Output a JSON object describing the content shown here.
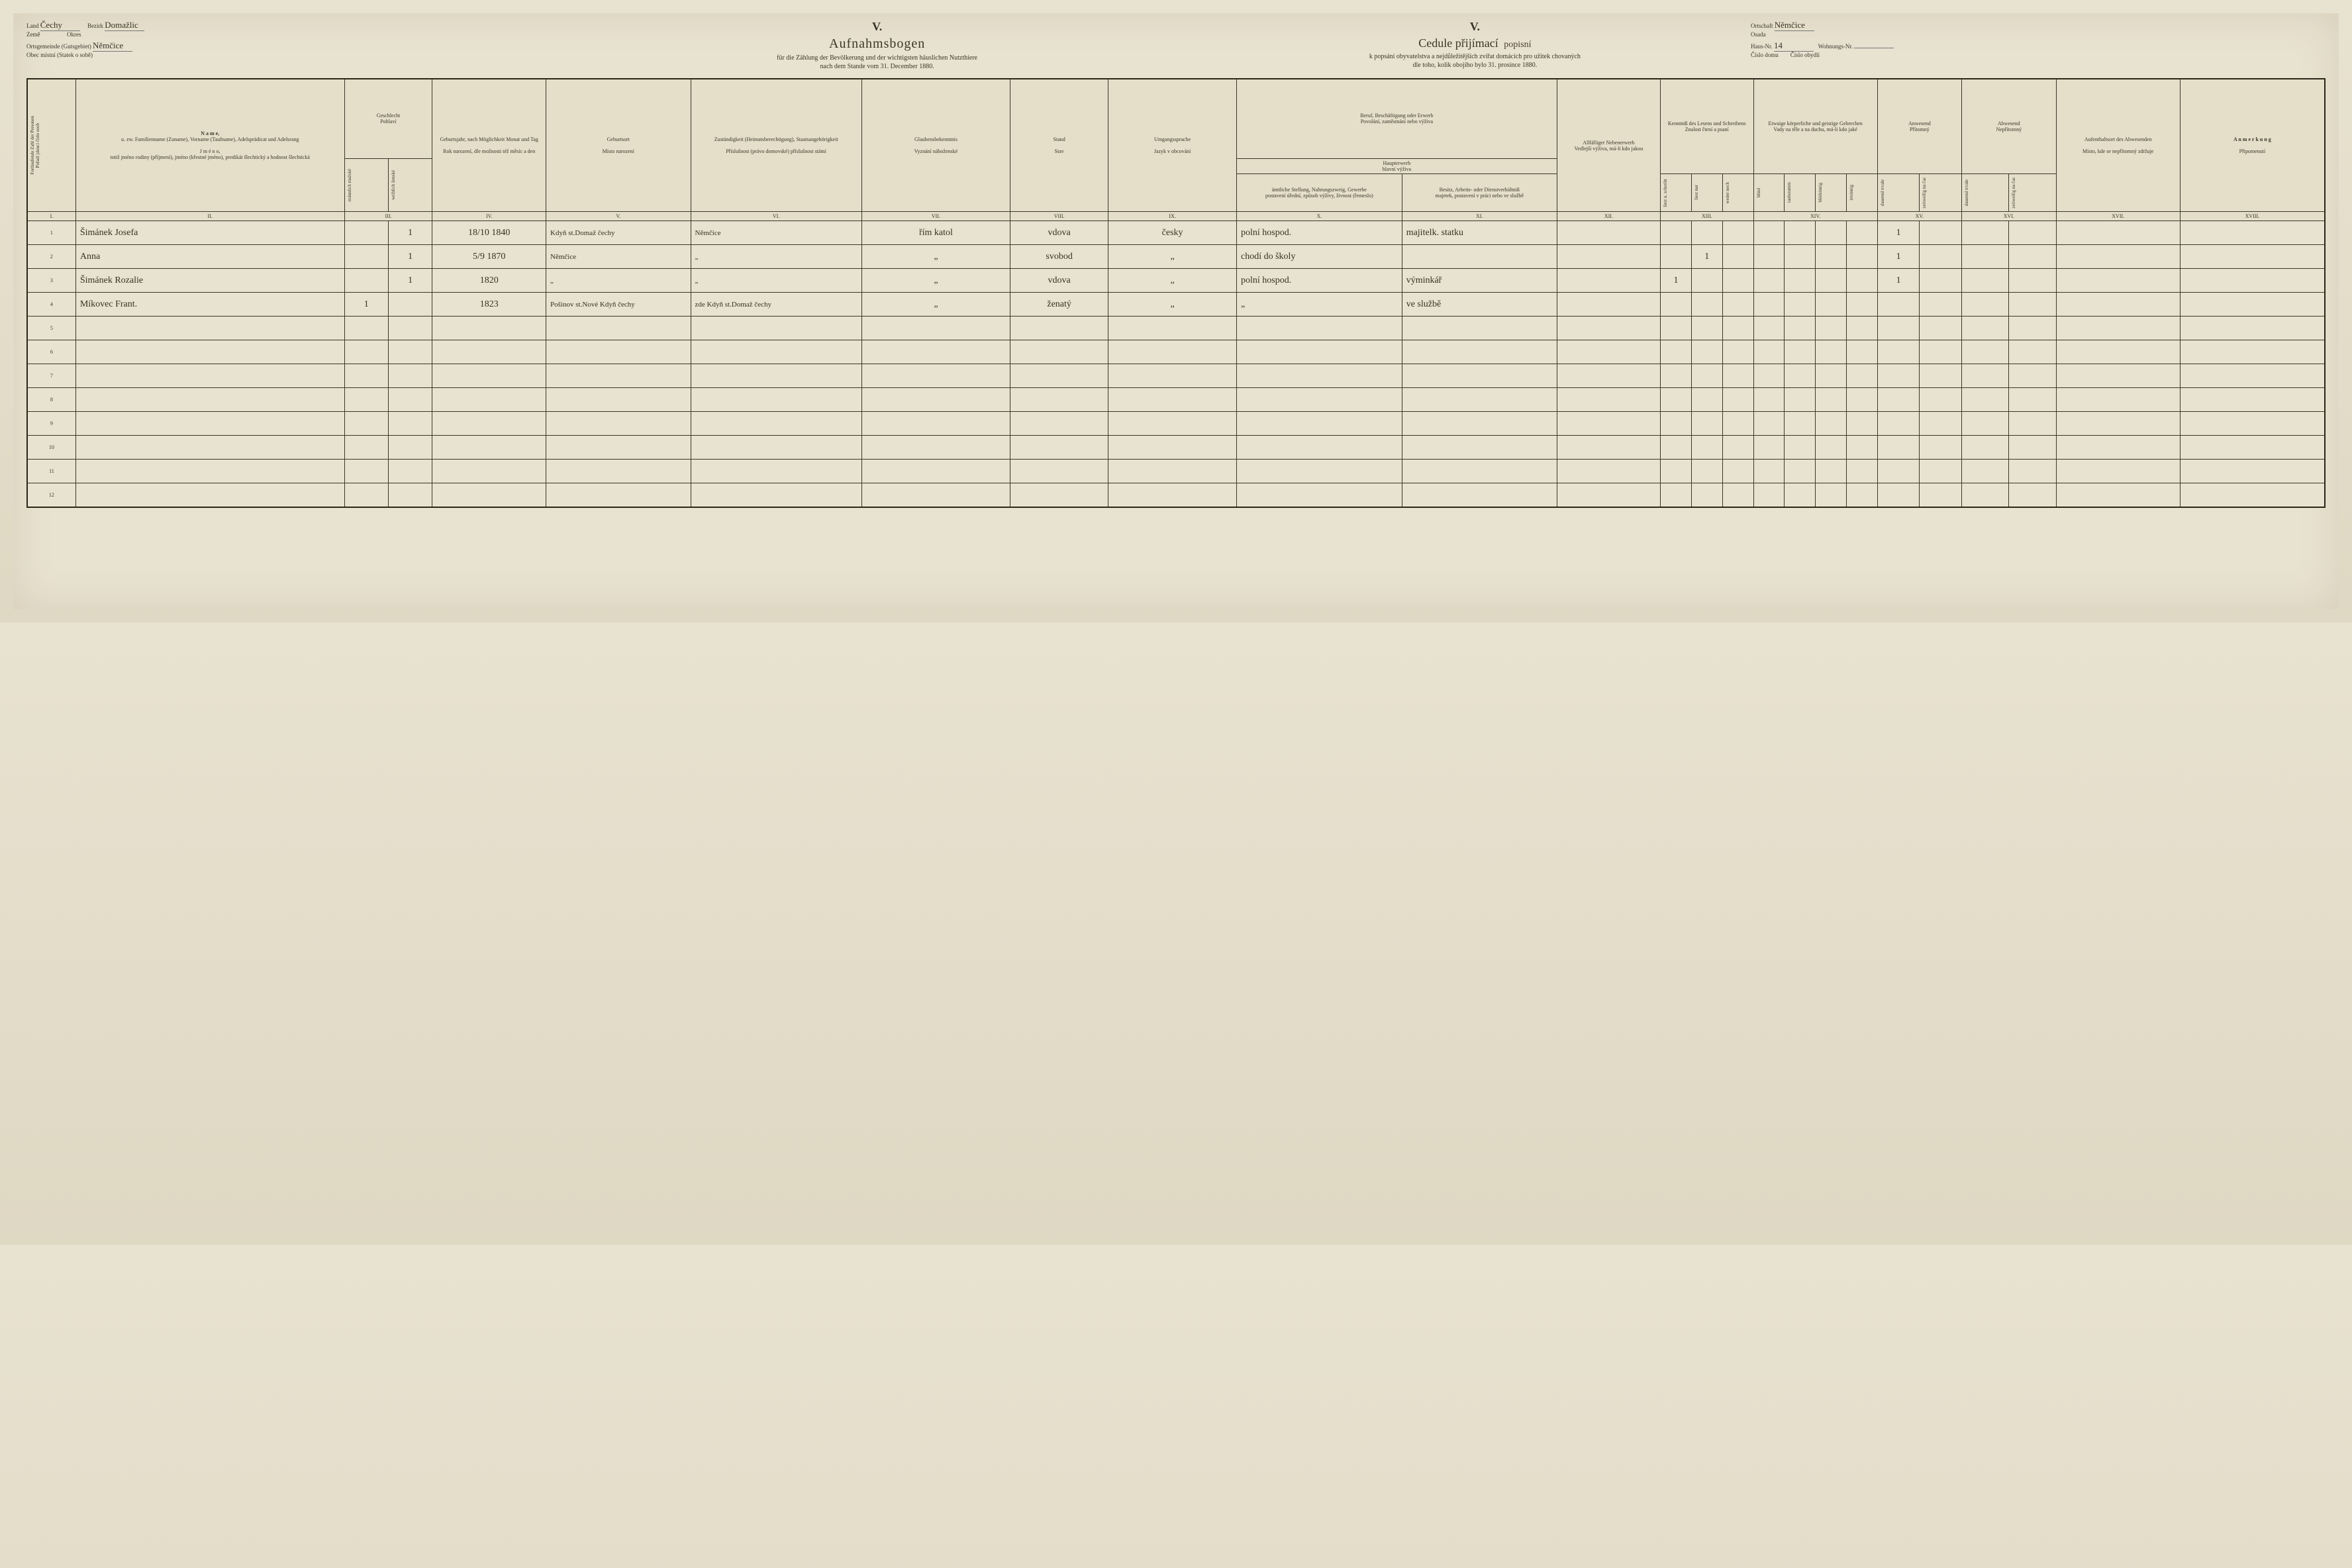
{
  "top_left": {
    "land_de": "Land",
    "land_cz": "Země",
    "land_val": "Čechy",
    "bezirk_de": "Bezirk",
    "bezirk_cz": "Okres",
    "bezirk_val": "Domažlic",
    "ort_de": "Ortsgemeinde (Gutsgebiet)",
    "ort_cz": "Obec místní (Statek o sobě)",
    "ort_val": "Němčice"
  },
  "top_right": {
    "ortschaft_de": "Ortschaft",
    "ortschaft_cz": "Osada",
    "ortschaft_val": "Němčice",
    "haus_de": "Haus-Nr.",
    "haus_cz": "Číslo domu",
    "haus_val": "14",
    "wohn_de": "Wohnungs-Nr.",
    "wohn_cz": "Číslo obydlí",
    "wohn_val": ""
  },
  "header": {
    "roman": "V.",
    "title_de": "Aufnahmsbogen",
    "subtitle_de": "für die Zählung der Bevölkerung und der wichtigsten häuslichen Nutzthiere",
    "date_de": "nach dem Stande vom 31. December 1880.",
    "title_cz": "Cedule přijímací",
    "title_cz_hand": "popisní",
    "subtitle_cz": "k popsání obyvatelstva a nejdůležitějších zvířat domácích pro užitek chovaných",
    "date_cz": "dle toho, kolik obojího bylo 31. prosince 1880."
  },
  "columns": {
    "c1": {
      "vert_de": "Fortlaufende Zahl der Personen",
      "vert_cz": "Pořadí jdoucí číslo osob"
    },
    "c2": {
      "de1": "N a m e,",
      "de2": "u. zw. Familienname (Zuname), Vorname (Taufname), Adelsprädicat und Adelsrang",
      "cz1": "J m é n o,",
      "cz2": "totiž jméno rodiny (příjmení), jméno (křestné jméno), predikát šlechtický a hodnost šlechtická"
    },
    "c3": {
      "de": "Geschlecht",
      "cz": "Pohlaví",
      "sub_m_de": "männlich",
      "sub_m_cz": "mužské",
      "sub_f_de": "weiblich",
      "sub_f_cz": "ženské"
    },
    "c4": {
      "de": "Geburtsjahr, nach Möglichkeit Monat und Tag",
      "cz": "Rok narození, dle možnosti též měsíc a den"
    },
    "c5": {
      "de": "Geburtsort",
      "cz": "Místo narození"
    },
    "c6": {
      "de": "Zuständigkeit (Heimatsberechtigung), Staatsangehörigkeit",
      "cz": "Příslušnost (právo domovské) příslušnost státní"
    },
    "c7": {
      "de": "Glaubensbekenntnis",
      "cz": "Vyznání náboženské"
    },
    "c8": {
      "de": "Stand",
      "cz": "Stav"
    },
    "c9": {
      "de": "Umgangssprache",
      "cz": "Jazyk v obcování"
    },
    "c10_11": {
      "top_de": "Beruf, Beschäftigung oder Erwerb",
      "top_cz": "Povolání, zaměstnání nebo výživa",
      "mid_de": "Haupterwerb",
      "mid_cz": "hlavní výživa",
      "c10_de": "ämtliche Stellung, Nahrungszweig, Gewerbe",
      "c10_cz": "postavení úřední, způsob výživy, živnost (řemeslo)",
      "c11_de": "Besitz, Arbeits- oder Dienstverhältniß",
      "c11_cz": "majetek, postavení v práci nebo ve službě"
    },
    "c12": {
      "de": "Allfälliger Nebenerwerb",
      "cz": "Vedlejší výživa, má-li kdo jakou"
    },
    "c13": {
      "de": "Kenntniß des Lesens und Schreibens",
      "cz": "Znalost čtení a psaní"
    },
    "c14": {
      "de": "Etwaige körperliche und geistige Gebrechen",
      "cz": "Vady na těle a na duchu, má-li kdo jaké"
    },
    "c15": {
      "de": "Anwesend",
      "cz": "Přítomný"
    },
    "c16": {
      "top_de": "Abwesend",
      "de": "Nepřítomný"
    },
    "c17": {
      "de": "Aufenthaltsort des Abwesenden",
      "cz": "Místo, kde se nepřítomný zdržuje"
    },
    "c18": {
      "de": "A n m e r k u n g",
      "cz": "Připomenutí"
    }
  },
  "romans": [
    "I.",
    "II.",
    "III.",
    "IV.",
    "V.",
    "VI.",
    "VII.",
    "VIII.",
    "IX.",
    "X.",
    "XI.",
    "XII.",
    "XIII.",
    "XIV.",
    "XV.",
    "XVI.",
    "XVII.",
    "XVIII."
  ],
  "rows": [
    {
      "n": "1",
      "name": "Šimánek Josefa",
      "m": "",
      "f": "1",
      "birth": "18/10 1840",
      "place": "Kdyň st.Domaž čechy",
      "zust": "Němčice",
      "rel": "řím katol",
      "stand": "vdova",
      "lang": "česky",
      "x": "polní hospod.",
      "xi": "majitelk. statku",
      "xii": "",
      "r1": "",
      "r2": "",
      "r3": "",
      "l1": "",
      "l2": "",
      "l3": "",
      "l4": "",
      "p1": "1",
      "p2": ""
    },
    {
      "n": "2",
      "name": "Anna",
      "m": "",
      "f": "1",
      "birth": "5/9 1870",
      "place": "Němčice",
      "zust": "„",
      "rel": "„",
      "stand": "svobod",
      "lang": "„",
      "x": "chodí do školy",
      "xi": "",
      "xii": "",
      "r1": "",
      "r2": "1",
      "r3": "",
      "l1": "",
      "l2": "",
      "l3": "",
      "l4": "",
      "p1": "1",
      "p2": ""
    },
    {
      "n": "3",
      "name": "Šimánek Rozalie",
      "m": "",
      "f": "1",
      "birth": "1820",
      "place": "„",
      "zust": "„",
      "rel": "„",
      "stand": "vdova",
      "lang": "„",
      "x": "polní hospod.",
      "xi": "výminkář",
      "xii": "",
      "r1": "1",
      "r2": "",
      "r3": "",
      "l1": "",
      "l2": "",
      "l3": "",
      "l4": "",
      "p1": "1",
      "p2": ""
    },
    {
      "n": "4",
      "name": "Míkovec Frant.",
      "m": "1",
      "f": "",
      "birth": "1823",
      "place": "Pošinov st.Nové Kdyň čechy",
      "zust": "zde Kdyň st.Domaž čechy",
      "rel": "„",
      "stand": "ženatý",
      "lang": "„",
      "x": "„",
      "xi": "ve službě",
      "xii": "",
      "r1": "",
      "r2": "",
      "r3": "",
      "l1": "",
      "l2": "",
      "l3": "",
      "l4": "",
      "p1": "",
      "p2": ""
    },
    {
      "n": "5",
      "name": "",
      "m": "",
      "f": "",
      "birth": "",
      "place": "",
      "zust": "",
      "rel": "",
      "stand": "",
      "lang": "",
      "x": "",
      "xi": "",
      "xii": "",
      "r1": "",
      "r2": "",
      "r3": "",
      "l1": "",
      "l2": "",
      "l3": "",
      "l4": "",
      "p1": "",
      "p2": ""
    },
    {
      "n": "6",
      "name": "",
      "m": "",
      "f": "",
      "birth": "",
      "place": "",
      "zust": "",
      "rel": "",
      "stand": "",
      "lang": "",
      "x": "",
      "xi": "",
      "xii": "",
      "r1": "",
      "r2": "",
      "r3": "",
      "l1": "",
      "l2": "",
      "l3": "",
      "l4": "",
      "p1": "",
      "p2": ""
    },
    {
      "n": "7",
      "name": "",
      "m": "",
      "f": "",
      "birth": "",
      "place": "",
      "zust": "",
      "rel": "",
      "stand": "",
      "lang": "",
      "x": "",
      "xi": "",
      "xii": "",
      "r1": "",
      "r2": "",
      "r3": "",
      "l1": "",
      "l2": "",
      "l3": "",
      "l4": "",
      "p1": "",
      "p2": ""
    },
    {
      "n": "8",
      "name": "",
      "m": "",
      "f": "",
      "birth": "",
      "place": "",
      "zust": "",
      "rel": "",
      "stand": "",
      "lang": "",
      "x": "",
      "xi": "",
      "xii": "",
      "r1": "",
      "r2": "",
      "r3": "",
      "l1": "",
      "l2": "",
      "l3": "",
      "l4": "",
      "p1": "",
      "p2": ""
    },
    {
      "n": "9",
      "name": "",
      "m": "",
      "f": "",
      "birth": "",
      "place": "",
      "zust": "",
      "rel": "",
      "stand": "",
      "lang": "",
      "x": "",
      "xi": "",
      "xii": "",
      "r1": "",
      "r2": "",
      "r3": "",
      "l1": "",
      "l2": "",
      "l3": "",
      "l4": "",
      "p1": "",
      "p2": ""
    },
    {
      "n": "10",
      "name": "",
      "m": "",
      "f": "",
      "birth": "",
      "place": "",
      "zust": "",
      "rel": "",
      "stand": "",
      "lang": "",
      "x": "",
      "xi": "",
      "xii": "",
      "r1": "",
      "r2": "",
      "r3": "",
      "l1": "",
      "l2": "",
      "l3": "",
      "l4": "",
      "p1": "",
      "p2": ""
    },
    {
      "n": "11",
      "name": "",
      "m": "",
      "f": "",
      "birth": "",
      "place": "",
      "zust": "",
      "rel": "",
      "stand": "",
      "lang": "",
      "x": "",
      "xi": "",
      "xii": "",
      "r1": "",
      "r2": "",
      "r3": "",
      "l1": "",
      "l2": "",
      "l3": "",
      "l4": "",
      "p1": "",
      "p2": ""
    },
    {
      "n": "12",
      "name": "",
      "m": "",
      "f": "",
      "birth": "",
      "place": "",
      "zust": "",
      "rel": "",
      "stand": "",
      "lang": "",
      "x": "",
      "xi": "",
      "xii": "",
      "r1": "",
      "r2": "",
      "r3": "",
      "l1": "",
      "l2": "",
      "l3": "",
      "l4": "",
      "p1": "",
      "p2": ""
    }
  ],
  "colors": {
    "paper": "#e8e2d0",
    "ink": "#2a2518",
    "handwriting": "#3a3020"
  }
}
